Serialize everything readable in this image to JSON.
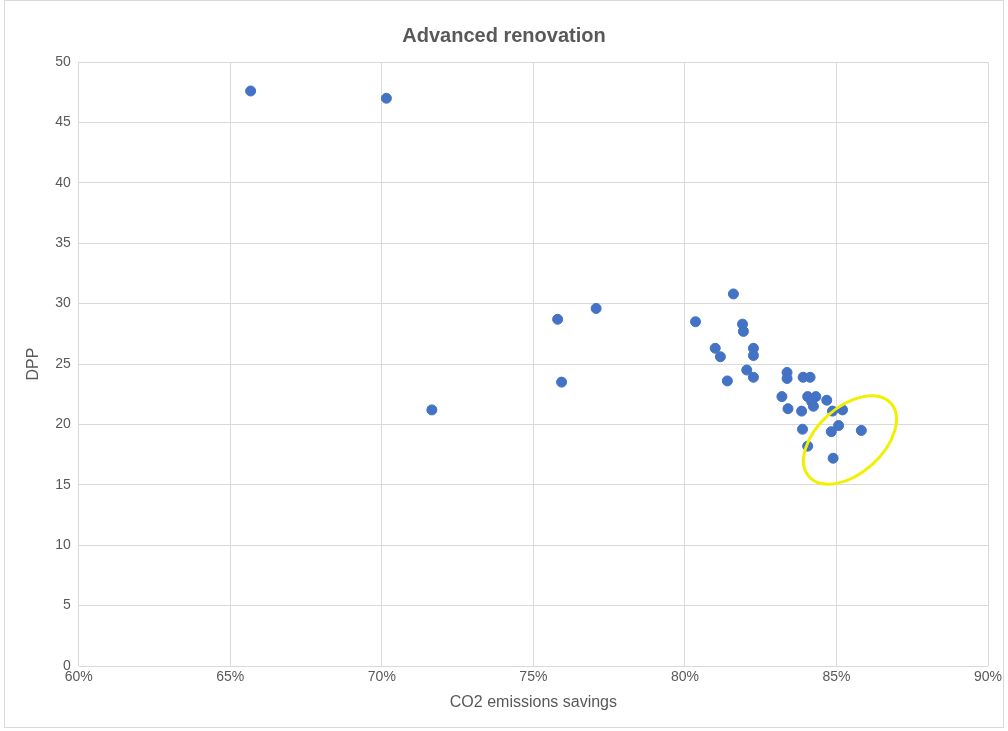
{
  "chart_data": {
    "type": "scatter",
    "title": "Advanced renovation",
    "xlabel": "CO2 emissions savings",
    "ylabel": "DPP",
    "series": [
      {
        "color": "#4472c4",
        "x": [
          65.67,
          70.15,
          71.65,
          75.8,
          75.93,
          77.07,
          81.6,
          80.35,
          81.9,
          81.93,
          81.0,
          81.17,
          82.26,
          82.26,
          82.04,
          82.26,
          81.4,
          83.37,
          83.37,
          83.9,
          84.13,
          83.2,
          83.4,
          83.85,
          84.05,
          84.32,
          84.24,
          84.18,
          84.68,
          84.87,
          85.2,
          83.88,
          84.83,
          85.07,
          85.82,
          84.05,
          84.89
        ],
        "values": [
          47.6,
          47.0,
          21.2,
          28.7,
          23.5,
          29.6,
          30.8,
          28.5,
          28.3,
          27.7,
          26.3,
          25.6,
          26.3,
          25.7,
          24.5,
          23.9,
          23.6,
          24.3,
          23.8,
          23.9,
          23.9,
          22.3,
          21.3,
          21.1,
          22.3,
          22.3,
          21.5,
          21.9,
          22.0,
          21.1,
          21.2,
          19.6,
          19.4,
          19.9,
          19.5,
          18.2,
          17.2
        ]
      }
    ],
    "xlim": [
      60,
      90
    ],
    "xticks": [
      {
        "value": 60,
        "label": "60%"
      },
      {
        "value": 65,
        "label": "65%"
      },
      {
        "value": 70,
        "label": "70%"
      },
      {
        "value": 75,
        "label": "75%"
      },
      {
        "value": 80,
        "label": "80%"
      },
      {
        "value": 85,
        "label": "85%"
      },
      {
        "value": 90,
        "label": "90%"
      }
    ],
    "ylim": [
      0,
      50
    ],
    "yticks": [
      0,
      5,
      10,
      15,
      20,
      25,
      30,
      35,
      40,
      45,
      50
    ],
    "grid": true,
    "legend": false,
    "marker": "circle"
  }
}
